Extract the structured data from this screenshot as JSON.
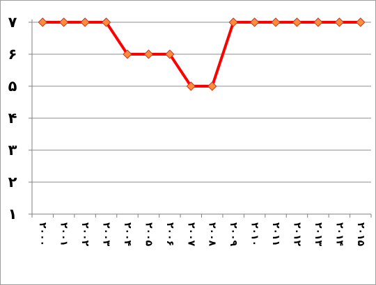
{
  "chart_data": {
    "type": "line",
    "title": "",
    "xlabel": "",
    "ylabel": "",
    "ylim": [
      1,
      7
    ],
    "yticks": [
      "۱",
      "۲",
      "۳",
      "۴",
      "۵",
      "۶",
      "۷"
    ],
    "grid": true,
    "legend": "none",
    "categories": [
      "۲۰۰۰",
      "۲۰۰۱",
      "۲۰۰۲",
      "۲۰۰۳",
      "۲۰۰۴",
      "۲۰۰۵",
      "۲۰۰۶",
      "۲۰۰۷",
      "۲۰۰۸",
      "۲۰۰۹",
      "۲۰۱۰",
      "۲۰۱۱",
      "۲۰۱۲",
      "۲۰۱۳",
      "۲۰۱۴",
      "۲۰۱۵"
    ],
    "series": [
      {
        "values": [
          7,
          7,
          7,
          7,
          6,
          6,
          6,
          5,
          5,
          7,
          7,
          7,
          7,
          7,
          7,
          7
        ],
        "line_color": "#ff0000",
        "marker_fill": "#ff8c3a",
        "marker_stroke": "#c0392b",
        "marker": "diamond"
      }
    ]
  }
}
